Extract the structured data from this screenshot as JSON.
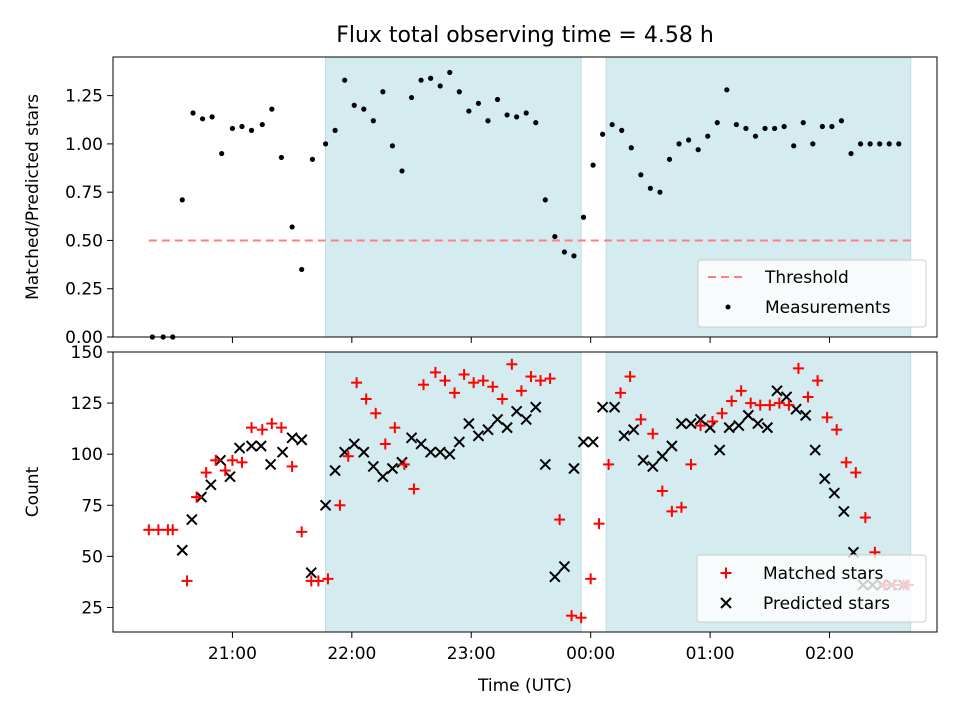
{
  "chart_data": [
    {
      "type": "scatter",
      "title": "Flux total observing time = 4.58 h",
      "xlabel": "",
      "ylabel": "Matched/Predicted stars",
      "x_axis": "time (UTC), hours after 20:00",
      "xlim": [
        20.0,
        26.9
      ],
      "ylim": [
        0.0,
        1.45
      ],
      "yticks": [
        0.0,
        0.25,
        0.5,
        0.75,
        1.0,
        1.25
      ],
      "ytick_labels": [
        "0.00",
        "0.25",
        "0.50",
        "0.75",
        "1.00",
        "1.25"
      ],
      "shaded_regions": [
        [
          21.78,
          23.92
        ],
        [
          24.13,
          26.68
        ]
      ],
      "threshold": {
        "name": "Threshold",
        "value": 0.5,
        "x_range": [
          20.3,
          26.68
        ],
        "color": "#ff7f7f"
      },
      "legend_position": "lower-right",
      "grid": false,
      "series": [
        {
          "name": "Measurements",
          "color": "#000000",
          "x": [
            20.33,
            20.42,
            20.5,
            20.58,
            20.67,
            20.75,
            20.83,
            20.91,
            21.0,
            21.08,
            21.16,
            21.25,
            21.33,
            21.41,
            21.5,
            21.58,
            21.67,
            21.78,
            21.86,
            21.94,
            22.02,
            22.1,
            22.18,
            22.26,
            22.34,
            22.42,
            22.5,
            22.58,
            22.66,
            22.74,
            22.82,
            22.9,
            22.98,
            23.06,
            23.14,
            23.22,
            23.3,
            23.38,
            23.46,
            23.54,
            23.62,
            23.7,
            23.78,
            23.86,
            23.94,
            24.02,
            24.1,
            24.18,
            24.26,
            24.34,
            24.42,
            24.5,
            24.58,
            24.66,
            24.74,
            24.82,
            24.9,
            24.98,
            25.06,
            25.14,
            25.22,
            25.3,
            25.38,
            25.46,
            25.54,
            25.62,
            25.7,
            25.78,
            25.86,
            25.94,
            26.02,
            26.1,
            26.18,
            26.26,
            26.34,
            26.42,
            26.5,
            26.58
          ],
          "values": [
            0.0,
            0.0,
            0.0,
            0.71,
            1.16,
            1.13,
            1.14,
            0.95,
            1.08,
            1.09,
            1.07,
            1.1,
            1.18,
            0.93,
            0.57,
            0.35,
            0.92,
            1.0,
            1.07,
            1.33,
            1.2,
            1.18,
            1.12,
            1.27,
            0.99,
            0.86,
            1.24,
            1.33,
            1.34,
            1.3,
            1.37,
            1.27,
            1.17,
            1.21,
            1.12,
            1.23,
            1.15,
            1.14,
            1.16,
            1.11,
            0.71,
            0.52,
            0.44,
            0.42,
            0.62,
            0.89,
            1.05,
            1.1,
            1.07,
            0.98,
            0.84,
            0.77,
            0.75,
            0.92,
            1.0,
            1.02,
            0.97,
            1.04,
            1.11,
            1.28,
            1.1,
            1.08,
            1.04,
            1.08,
            1.08,
            1.09,
            0.99,
            1.11,
            1.0,
            1.09,
            1.09,
            1.12,
            0.95,
            1.0,
            1.0,
            1.0,
            1.0,
            1.0
          ]
        }
      ]
    },
    {
      "type": "scatter",
      "title": "",
      "xlabel": "Time (UTC)",
      "ylabel": "Count",
      "x_axis": "time (UTC), hours after 20:00",
      "xlim": [
        20.0,
        26.9
      ],
      "ylim": [
        13,
        150
      ],
      "yticks": [
        25,
        50,
        75,
        100,
        125,
        150
      ],
      "ytick_labels": [
        "25",
        "50",
        "75",
        "100",
        "125",
        "150"
      ],
      "xticks": [
        21.0,
        22.0,
        23.0,
        24.0,
        25.0,
        26.0
      ],
      "xtick_labels": [
        "21:00",
        "22:00",
        "23:00",
        "00:00",
        "01:00",
        "02:00"
      ],
      "shaded_regions": [
        [
          21.78,
          23.92
        ],
        [
          24.13,
          26.68
        ]
      ],
      "legend_position": "lower-right",
      "grid": false,
      "series": [
        {
          "name": "Matched stars",
          "color": "#ff0000",
          "marker": "plus",
          "x": [
            20.3,
            20.38,
            20.46,
            20.5,
            20.62,
            20.7,
            20.78,
            20.86,
            20.94,
            21.0,
            21.08,
            21.16,
            21.25,
            21.33,
            21.41,
            21.5,
            21.58,
            21.66,
            21.72,
            21.8,
            21.9,
            21.97,
            22.04,
            22.12,
            22.2,
            22.28,
            22.36,
            22.44,
            22.52,
            22.6,
            22.7,
            22.78,
            22.86,
            22.94,
            23.02,
            23.1,
            23.18,
            23.26,
            23.34,
            23.42,
            23.5,
            23.58,
            23.66,
            23.74,
            23.84,
            23.92,
            24.0,
            24.07,
            24.15,
            24.25,
            24.33,
            24.42,
            24.52,
            24.6,
            24.68,
            24.76,
            24.84,
            24.92,
            25.02,
            25.1,
            25.18,
            25.26,
            25.34,
            25.42,
            25.5,
            25.58,
            25.66,
            25.74,
            25.82,
            25.9,
            25.98,
            26.06,
            26.14,
            26.22,
            26.3,
            26.38,
            26.46,
            26.54,
            26.62,
            26.66
          ],
          "values": [
            63,
            63,
            63,
            63,
            38,
            79,
            91,
            97,
            92,
            97,
            96,
            113,
            112,
            115,
            113,
            94,
            62,
            38,
            38,
            39,
            75,
            99,
            135,
            127,
            120,
            105,
            113,
            95,
            83,
            134,
            140,
            136,
            130,
            139,
            135,
            136,
            133,
            127,
            144,
            131,
            138,
            136,
            137,
            68,
            21,
            20,
            39,
            66,
            95,
            130,
            138,
            117,
            110,
            82,
            72,
            74,
            95,
            114,
            116,
            120,
            126,
            131,
            125,
            124,
            124,
            125,
            124,
            142,
            128,
            136,
            118,
            112,
            96,
            91,
            69,
            52,
            36,
            36,
            36,
            36
          ]
        },
        {
          "name": "Predicted stars",
          "color": "#000000",
          "marker": "x",
          "x": [
            20.58,
            20.66,
            20.74,
            20.82,
            20.9,
            20.98,
            21.06,
            21.16,
            21.24,
            21.32,
            21.42,
            21.5,
            21.58,
            21.66,
            21.78,
            21.86,
            21.94,
            22.02,
            22.1,
            22.18,
            22.26,
            22.34,
            22.42,
            22.5,
            22.58,
            22.66,
            22.74,
            22.82,
            22.9,
            22.98,
            23.06,
            23.14,
            23.22,
            23.3,
            23.38,
            23.46,
            23.54,
            23.62,
            23.7,
            23.78,
            23.86,
            23.94,
            24.02,
            24.1,
            24.2,
            24.28,
            24.36,
            24.44,
            24.52,
            24.6,
            24.68,
            24.76,
            24.84,
            24.92,
            25.0,
            25.08,
            25.16,
            25.24,
            25.32,
            25.4,
            25.48,
            25.56,
            25.64,
            25.72,
            25.8,
            25.88,
            25.96,
            26.04,
            26.12,
            26.2,
            26.28,
            26.36,
            26.44,
            26.52,
            26.62
          ],
          "values": [
            53,
            68,
            79,
            85,
            97,
            89,
            103,
            104,
            104,
            95,
            101,
            108,
            107,
            42,
            75,
            92,
            101,
            105,
            101,
            94,
            89,
            93,
            96,
            108,
            105,
            101,
            101,
            100,
            106,
            115,
            109,
            112,
            117,
            113,
            121,
            117,
            123,
            95,
            40,
            45,
            93,
            106,
            106,
            123,
            123,
            109,
            112,
            97,
            94,
            99,
            104,
            115,
            115,
            117,
            113,
            102,
            113,
            114,
            119,
            115,
            113,
            131,
            128,
            122,
            119,
            102,
            88,
            81,
            72,
            52,
            36,
            36,
            36,
            36,
            36
          ]
        }
      ]
    }
  ]
}
